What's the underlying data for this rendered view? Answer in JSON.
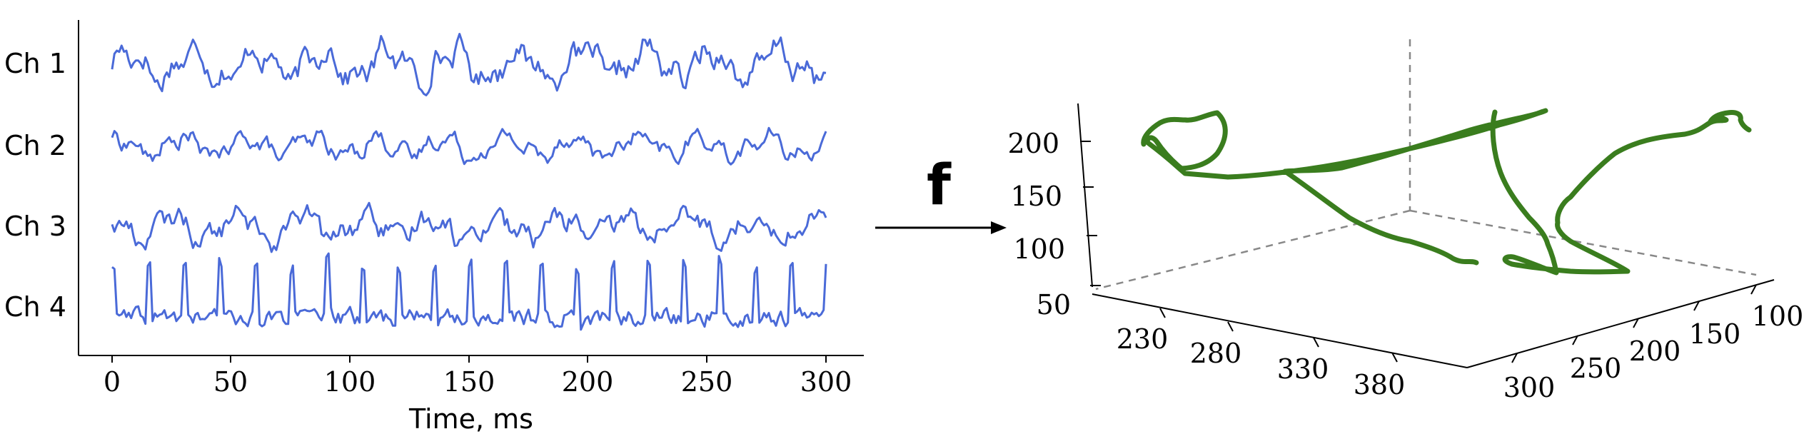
{
  "figure": {
    "operator_label": "f",
    "colors": {
      "signal": "#4a6ad8",
      "trajectory": "#3a7d1e",
      "axes": "#000000",
      "dashed": "#888888"
    }
  },
  "chart_data": [
    {
      "type": "line",
      "title": "",
      "xlabel": "Time, ms",
      "ylabel": "",
      "xlim": [
        -14,
        315
      ],
      "x_ticks": [
        "0",
        "50",
        "100",
        "150",
        "200",
        "250",
        "300"
      ],
      "series": [
        {
          "name": "Ch 1"
        },
        {
          "name": "Ch 2"
        },
        {
          "name": "Ch 3"
        },
        {
          "name": "Ch 4"
        }
      ],
      "grid": false
    },
    {
      "type": "line",
      "subtype": "3d-trajectory",
      "title": "",
      "z_ticks": [
        "50",
        "100",
        "150",
        "200"
      ],
      "x_ticks": [
        "230",
        "280",
        "330",
        "380"
      ],
      "y_ticks": [
        "300",
        "250",
        "200",
        "150",
        "100"
      ],
      "grid": false
    }
  ]
}
